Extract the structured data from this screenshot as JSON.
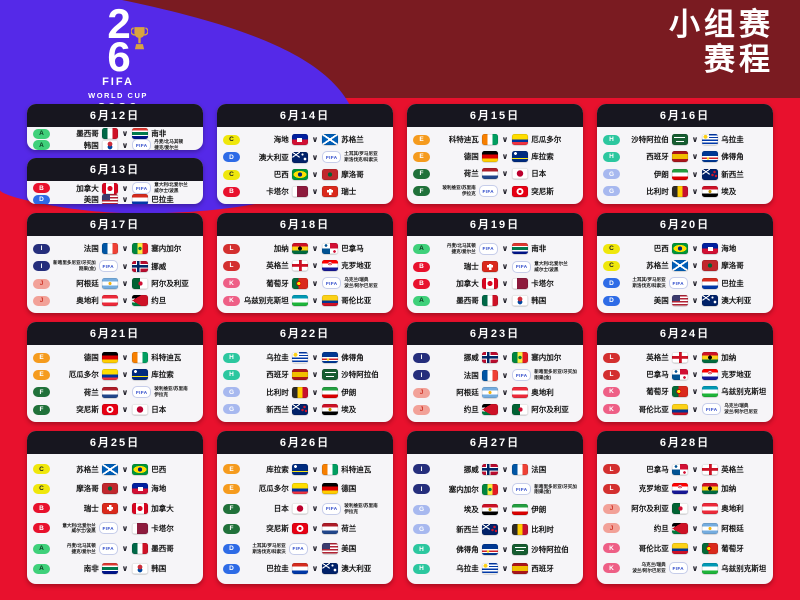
{
  "colors": {
    "page_red": "#e8112d",
    "purple": "#5529e8",
    "maroon": "#7a1b21",
    "card_header": "#17161f",
    "card_bg": "#f6f5f8"
  },
  "logo": {
    "digit_top": "2",
    "digit_bottom": "6",
    "fifa": "FIFA",
    "world_cup": "WORLD CUP",
    "year": "2026"
  },
  "title": {
    "line1": "小组赛",
    "line2": "赛程"
  },
  "labels": {
    "vs": "∨",
    "fifa": "FIFA"
  },
  "groups": {
    "A": {
      "bg": "#3fd07a",
      "fg": "#0a3b20"
    },
    "B": {
      "bg": "#e8112d",
      "fg": "#ffffff"
    },
    "C": {
      "bg": "#efe70c",
      "fg": "#222222"
    },
    "D": {
      "bg": "#2e6be6",
      "fg": "#ffffff"
    },
    "E": {
      "bg": "#f59b1e",
      "fg": "#ffffff"
    },
    "F": {
      "bg": "#20713a",
      "fg": "#ffffff"
    },
    "G": {
      "bg": "#a7b8ef",
      "fg": "#ffffff"
    },
    "H": {
      "bg": "#2cc79f",
      "fg": "#ffffff"
    },
    "I": {
      "bg": "#252e7c",
      "fg": "#ffffff"
    },
    "J": {
      "bg": "#f2a198",
      "fg": "#d0362a"
    },
    "K": {
      "bg": "#ee5f86",
      "fg": "#ffffff"
    },
    "L": {
      "bg": "#d32f2f",
      "fg": "#ffffff"
    }
  },
  "playoffs": {
    "A": [
      "丹麦/北马其顿",
      "捷克/爱尔兰"
    ],
    "B": [
      "意大利/北爱尔兰",
      "威尔士/波黑"
    ],
    "D": [
      "土耳其/罗马尼亚",
      "斯洛伐克/科索沃"
    ],
    "F": [
      "玻利维亚/苏里南",
      "伊拉克"
    ],
    "I": [
      "新喀里多尼亚/牙买加",
      "刚果(金)"
    ],
    "K": [
      "乌克兰/瑞典",
      "波兰/阿尔巴尼亚"
    ]
  },
  "flags": {
    "墨西哥": "linear-gradient(to right,#006847 33%,#fff 33% 67%,#ce1126 67%)",
    "南非": "linear-gradient(to bottom,#de3831 25%,#fff 25% 38%,#007a4d 38% 62%,#fff 62% 75%,#001489 75%)",
    "韩国": "radial-gradient(circle at 8px 4px,#cd2e3a 2.2px,transparent 2.5px),radial-gradient(circle at 8px 7px,#0047a0 2.2px,transparent 2.5px),#fff",
    "加拿大": "radial-gradient(circle at 50% 50%,#d80621 2.4px,transparent 2.7px),linear-gradient(to right,#d80621 25%,#fff 25% 75%,#d80621 75%)",
    "美国": "linear-gradient(#3c3b6e,#3c3b6e) 0 0/8px 6px no-repeat,repeating-linear-gradient(to bottom,#b22234 0 1.5px,#fff 1.5px 3px)",
    "巴拉圭": "linear-gradient(to bottom,#d52b1e 33%,#fff 33% 67%,#0038a8 67%)",
    "海地": "linear-gradient(#fff,#fff) 5.5px 3.5px/5px 4px no-repeat,linear-gradient(to bottom,#00209f 50%,#d21034 50%)",
    "苏格兰": "linear-gradient(to top right,transparent 45%,#fff 45% 55%,transparent 55%),linear-gradient(to bottom right,transparent 45%,#fff 45% 55%,transparent 55%),#005eb8",
    "澳大利亚": "radial-gradient(circle at 13px 7px,#fff 1.2px,transparent 1.5px),radial-gradient(circle at 10.5px 2.5px,#fff .9px,transparent 1.2px),linear-gradient(to bottom right,transparent 44%,#fff 44% 56%,transparent 56%) 0 0/8px 5.5px no-repeat,linear-gradient(to top right,transparent 44%,#fff 44% 56%,transparent 56%) 0 0/8px 5.5px no-repeat,#012169",
    "巴西": "radial-gradient(circle at 50% 50%,#002776 2px,transparent 2.3px),radial-gradient(ellipse 6.5px 3.5px at 50% 50%,#ffdf00 99%,transparent 100%),#009739",
    "摩洛哥": "radial-gradient(circle at 50% 50%,#006233 2px,transparent 2.3px),#c1272d",
    "卡塔尔": "linear-gradient(to right,#fff 32%,#8d1b3d 32%)",
    "瑞士": "linear-gradient(#fff,#fff) 6.8px 2.5px/2.5px 6px no-repeat,linear-gradient(#fff,#fff) 5px 4.2px/6px 2.5px no-repeat,#da291c",
    "科特迪瓦": "linear-gradient(to right,#f77f00 33%,#fff 33% 67%,#009e60 67%)",
    "厄瓜多尔": "linear-gradient(to bottom,#ffdd00 50%,#0033a0 50% 75%,#ef3340 75%)",
    "德国": "linear-gradient(to bottom,#000 33%,#dd0000 33% 67%,#ffce00 67%)",
    "库拉索": "radial-gradient(circle at 3.5px 2.5px,#fff 1.3px,transparent 1.6px),linear-gradient(to bottom,transparent 6.8px,#f9e814 6.8px 8.2px,transparent 8.2px),#002b7f",
    "荷兰": "linear-gradient(to bottom,#ae1c28 33%,#fff 33% 67%,#21468b 67%)",
    "日本": "radial-gradient(circle at 50% 50%,#bc002d 3px,transparent 3.4px),#fff",
    "突尼斯": "radial-gradient(circle at 50% 50%,#e70013 1.5px,transparent 1.8px),radial-gradient(circle at 50% 50%,#fff 3.2px,transparent 3.6px),#e70013",
    "沙特阿拉伯": "linear-gradient(#fff,#fff) 2.5px 3px/11px 1.2px no-repeat,linear-gradient(#fff,#fff) 4px 6.5px/8px 1px no-repeat,#165d31",
    "乌拉圭": "radial-gradient(circle at 3.5px 2.8px,#fcd116 1.8px,transparent 2.1px),linear-gradient(#fff,#fff) 0 0/7px 5.5px no-repeat,repeating-linear-gradient(to bottom,#0038a8 0 1.4px,#fff 1.4px 2.8px)",
    "西班牙": "linear-gradient(to bottom,#aa151b 27%,#f1bf00 27% 73%,#aa151b 73%)",
    "佛得角": "radial-gradient(circle at 6px 7.5px,#f7d116 1.1px,transparent 1.4px),linear-gradient(to bottom,transparent 5.2px,#fff 5.2px 6.5px,#cf2027 6.5px 7.8px,#fff 7.8px 9.1px,transparent 9.1px),#003893",
    "伊朗": "linear-gradient(to bottom,#239f40 33%,#fff 33% 67%,#da0000 67%)",
    "新西兰": "radial-gradient(circle at 12.5px 3px,#cc142b 1.1px,transparent 1.4px),radial-gradient(circle at 14px 7px,#cc142b 1.1px,transparent 1.4px),radial-gradient(circle at 10.5px 6px,#cc142b 1.1px,transparent 1.4px),linear-gradient(to bottom right,transparent 44%,#fff 44% 56%,transparent 56%) 0 0/8px 5.5px no-repeat,linear-gradient(to top right,transparent 44%,#fff 44% 56%,transparent 56%) 0 0/8px 5.5px no-repeat,#012169",
    "比利时": "linear-gradient(to right,#2d2926 33%,#ffcd00 33% 67%,#c8102e 67%)",
    "埃及": "radial-gradient(circle at 50% 50%,#c09300 1.4px,transparent 1.7px),linear-gradient(to bottom,#ce1126 33%,#fff 33% 67%,#000 67%)",
    "法国": "linear-gradient(to right,#0055a4 33%,#fff 33% 67%,#ef4135 67%)",
    "塞内加尔": "radial-gradient(circle at 50% 50%,#00853f 1.6px,transparent 1.9px),linear-gradient(to right,#00853f 33%,#fdef42 33% 67%,#e31b23 67%)",
    "挪威": "linear-gradient(#002868,#002868) 5px 0/2.5px 11px no-repeat,linear-gradient(#002868,#002868) 0 4.2px/16px 2.6px no-repeat,linear-gradient(#fff,#fff) 4px 0/4.5px 11px no-repeat,linear-gradient(#fff,#fff) 0 3.2px/16px 4.6px no-repeat,#ba0c2f",
    "阿根廷": "radial-gradient(circle at 50% 50%,#f6b40e 1.4px,transparent 1.7px),linear-gradient(to bottom,#74acdf 33%,#fff 33% 67%,#74acdf 67%)",
    "阿尔及利亚": "radial-gradient(circle at 8.5px 5.5px,#d21034 2px,transparent 2.3px),linear-gradient(to right,#006233 50%,#fff 50%)",
    "奥地利": "linear-gradient(to bottom,#ed2939 33%,#fff 33% 67%,#ed2939 67%)",
    "约旦": "conic-gradient(from 60deg at 0 50%,#ce1126 0 60deg,transparent 60deg),linear-gradient(to bottom,#000 33%,#fff 33% 67%,#007a3d 67%)",
    "加纳": "radial-gradient(circle at 50% 50%,#000 1.8px,transparent 2.1px),linear-gradient(to bottom,#ce1126 33%,#fcd116 33% 67%,#006b3f 67%)",
    "巴拿马": "radial-gradient(circle at 4px 2.5px,#005293 1.2px,transparent 1.5px),radial-gradient(circle at 12.5px 8.5px,#d21034 1.2px,transparent 1.5px),conic-gradient(#d21034 0 90deg,#fff 90deg 180deg,#005293 180deg 270deg,#fff 270deg)",
    "英格兰": "linear-gradient(#ce1124,#ce1124) 6.8px 0/2.8px 11px no-repeat,linear-gradient(#ce1124,#ce1124) 0 4.2px/16px 2.8px no-repeat,#fff",
    "克罗地亚": "radial-gradient(circle at 8px 3.2px,#ce1126 .8px,#fff .8px 1.4px,#ce1126 1.4px 2px,transparent 2.2px),linear-gradient(to bottom,#ff0000 33%,#fff 33% 67%,#171796 67%)",
    "葡萄牙": "radial-gradient(circle at 6.8px 5.5px,#ffe500 1.6px,#d20000 1.7px 2.4px,transparent 2.5px),linear-gradient(to right,#046a38 40%,#da291c 40%)",
    "乌兹别克斯坦": "linear-gradient(to bottom,#0099b5 33%,#fff 33% 67%,#1eb53a 67%)",
    "哥伦比亚": "linear-gradient(to bottom,#fcd116 50%,#003893 50% 75%,#ce1126 75%)"
  },
  "cards": [
    {
      "date": "6月12日",
      "matches": [
        {
          "g": "A",
          "home": "墨西哥",
          "away": "南非"
        },
        {
          "g": "A",
          "home": "韩国",
          "away": {
            "playoff": "A"
          }
        }
      ]
    },
    {
      "date": "6月13日",
      "matches": [
        {
          "g": "B",
          "home": "加拿大",
          "away": {
            "playoff": "B"
          }
        },
        {
          "g": "D",
          "home": "美国",
          "away": "巴拉圭"
        }
      ]
    },
    {
      "date": "6月14日",
      "matches": [
        {
          "g": "C",
          "home": "海地",
          "away": "苏格兰"
        },
        {
          "g": "D",
          "home": "澳大利亚",
          "away": {
            "playoff": "D"
          }
        },
        {
          "g": "C",
          "home": "巴西",
          "away": "摩洛哥"
        },
        {
          "g": "B",
          "home": "卡塔尔",
          "away": "瑞士"
        }
      ]
    },
    {
      "date": "6月15日",
      "matches": [
        {
          "g": "E",
          "home": "科特迪瓦",
          "away": "厄瓜多尔"
        },
        {
          "g": "E",
          "home": "德国",
          "away": "库拉索"
        },
        {
          "g": "F",
          "home": "荷兰",
          "away": "日本"
        },
        {
          "g": "F",
          "home": {
            "playoff": "F"
          },
          "away": "突尼斯"
        }
      ]
    },
    {
      "date": "6月16日",
      "matches": [
        {
          "g": "H",
          "home": "沙特阿拉伯",
          "away": "乌拉圭"
        },
        {
          "g": "H",
          "home": "西班牙",
          "away": "佛得角"
        },
        {
          "g": "G",
          "home": "伊朗",
          "away": "新西兰"
        },
        {
          "g": "G",
          "home": "比利时",
          "away": "埃及"
        }
      ]
    },
    {
      "date": "6月17日",
      "matches": [
        {
          "g": "I",
          "home": "法国",
          "away": "塞内加尔"
        },
        {
          "g": "I",
          "home": {
            "playoff": "I"
          },
          "away": "挪威"
        },
        {
          "g": "J",
          "home": "阿根廷",
          "away": "阿尔及利亚"
        },
        {
          "g": "J",
          "home": "奥地利",
          "away": "约旦"
        }
      ]
    },
    {
      "date": "6月18日",
      "matches": [
        {
          "g": "L",
          "home": "加纳",
          "away": "巴拿马"
        },
        {
          "g": "L",
          "home": "英格兰",
          "away": "克罗地亚"
        },
        {
          "g": "K",
          "home": "葡萄牙",
          "away": {
            "playoff": "K"
          }
        },
        {
          "g": "K",
          "home": "乌兹别克斯坦",
          "away": "哥伦比亚"
        }
      ]
    },
    {
      "date": "6月19日",
      "matches": [
        {
          "g": "A",
          "home": {
            "playoff": "A"
          },
          "away": "南非"
        },
        {
          "g": "B",
          "home": "瑞士",
          "away": {
            "playoff": "B"
          }
        },
        {
          "g": "B",
          "home": "加拿大",
          "away": "卡塔尔"
        },
        {
          "g": "A",
          "home": "墨西哥",
          "away": "韩国"
        }
      ]
    },
    {
      "date": "6月20日",
      "matches": [
        {
          "g": "C",
          "home": "巴西",
          "away": "海地"
        },
        {
          "g": "C",
          "home": "苏格兰",
          "away": "摩洛哥"
        },
        {
          "g": "D",
          "home": {
            "playoff": "D"
          },
          "away": "巴拉圭"
        },
        {
          "g": "D",
          "home": "美国",
          "away": "澳大利亚"
        }
      ]
    },
    {
      "date": "6月21日",
      "matches": [
        {
          "g": "E",
          "home": "德国",
          "away": "科特迪瓦"
        },
        {
          "g": "E",
          "home": "厄瓜多尔",
          "away": "库拉索"
        },
        {
          "g": "F",
          "home": "荷兰",
          "away": {
            "playoff": "F"
          }
        },
        {
          "g": "F",
          "home": "突尼斯",
          "away": "日本"
        }
      ]
    },
    {
      "date": "6月22日",
      "matches": [
        {
          "g": "H",
          "home": "乌拉圭",
          "away": "佛得角"
        },
        {
          "g": "H",
          "home": "西班牙",
          "away": "沙特阿拉伯"
        },
        {
          "g": "G",
          "home": "比利时",
          "away": "伊朗"
        },
        {
          "g": "G",
          "home": "新西兰",
          "away": "埃及"
        }
      ]
    },
    {
      "date": "6月23日",
      "matches": [
        {
          "g": "I",
          "home": "挪威",
          "away": "塞内加尔"
        },
        {
          "g": "I",
          "home": "法国",
          "away": {
            "playoff": "I"
          }
        },
        {
          "g": "J",
          "home": "阿根廷",
          "away": "奥地利"
        },
        {
          "g": "J",
          "home": "约旦",
          "away": "阿尔及利亚"
        }
      ]
    },
    {
      "date": "6月24日",
      "matches": [
        {
          "g": "L",
          "home": "英格兰",
          "away": "加纳"
        },
        {
          "g": "L",
          "home": "巴拿马",
          "away": "克罗地亚"
        },
        {
          "g": "K",
          "home": "葡萄牙",
          "away": "乌兹别克斯坦"
        },
        {
          "g": "K",
          "home": "哥伦比亚",
          "away": {
            "playoff": "K"
          }
        }
      ]
    },
    {
      "date": "6月25日",
      "matches": [
        {
          "g": "C",
          "home": "苏格兰",
          "away": "巴西"
        },
        {
          "g": "C",
          "home": "摩洛哥",
          "away": "海地"
        },
        {
          "g": "B",
          "home": "瑞士",
          "away": "加拿大"
        },
        {
          "g": "B",
          "home": {
            "playoff": "B"
          },
          "away": "卡塔尔"
        },
        {
          "g": "A",
          "home": {
            "playoff": "A"
          },
          "away": "墨西哥"
        },
        {
          "g": "A",
          "home": "南非",
          "away": "韩国"
        }
      ]
    },
    {
      "date": "6月26日",
      "matches": [
        {
          "g": "E",
          "home": "库拉索",
          "away": "科特迪瓦"
        },
        {
          "g": "E",
          "home": "厄瓜多尔",
          "away": "德国"
        },
        {
          "g": "F",
          "home": "日本",
          "away": {
            "playoff": "F"
          }
        },
        {
          "g": "F",
          "home": "突尼斯",
          "away": "荷兰"
        },
        {
          "g": "D",
          "home": {
            "playoff": "D"
          },
          "away": "美国"
        },
        {
          "g": "D",
          "home": "巴拉圭",
          "away": "澳大利亚"
        }
      ]
    },
    {
      "date": "6月27日",
      "matches": [
        {
          "g": "I",
          "home": "挪威",
          "away": "法国"
        },
        {
          "g": "I",
          "home": "塞内加尔",
          "away": {
            "playoff": "I"
          }
        },
        {
          "g": "G",
          "home": "埃及",
          "away": "伊朗"
        },
        {
          "g": "G",
          "home": "新西兰",
          "away": "比利时"
        },
        {
          "g": "H",
          "home": "佛得角",
          "away": "沙特阿拉伯"
        },
        {
          "g": "H",
          "home": "乌拉圭",
          "away": "西班牙"
        }
      ]
    },
    {
      "date": "6月28日",
      "matches": [
        {
          "g": "L",
          "home": "巴拿马",
          "away": "英格兰"
        },
        {
          "g": "L",
          "home": "克罗地亚",
          "away": "加纳"
        },
        {
          "g": "J",
          "home": "阿尔及利亚",
          "away": "奥地利"
        },
        {
          "g": "J",
          "home": "约旦",
          "away": "阿根廷"
        },
        {
          "g": "K",
          "home": "哥伦比亚",
          "away": "葡萄牙"
        },
        {
          "g": "K",
          "home": {
            "playoff": "K"
          },
          "away": "乌兹别克斯坦"
        }
      ]
    }
  ]
}
